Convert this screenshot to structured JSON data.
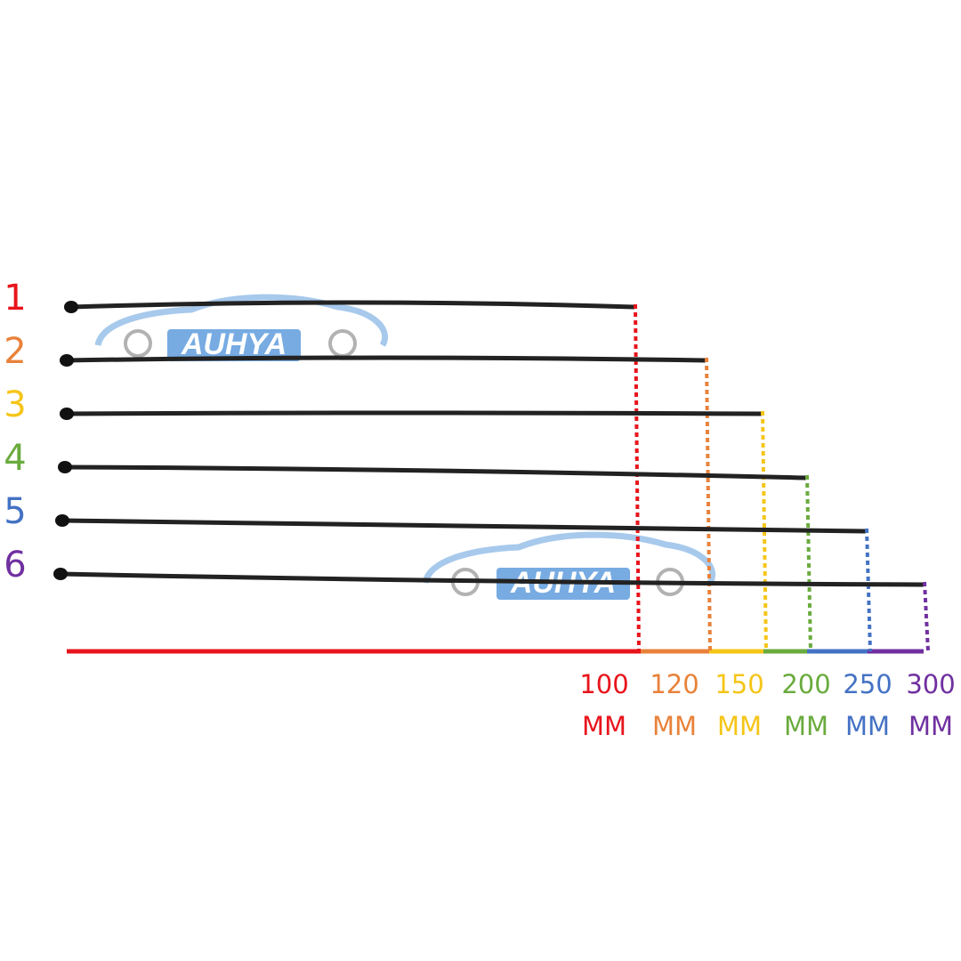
{
  "watermark": "AUHYA",
  "rows": [
    {
      "label": "1",
      "color": "#e8141c"
    },
    {
      "label": "2",
      "color": "#e8823a"
    },
    {
      "label": "3",
      "color": "#f5c518"
    },
    {
      "label": "4",
      "color": "#6aab3e"
    },
    {
      "label": "5",
      "color": "#4472c4"
    },
    {
      "label": "6",
      "color": "#7030a0"
    }
  ],
  "sizes": [
    {
      "value": "100",
      "unit": "MM"
    },
    {
      "value": "120",
      "unit": "MM"
    },
    {
      "value": "150",
      "unit": "MM"
    },
    {
      "value": "200",
      "unit": "MM"
    },
    {
      "value": "250",
      "unit": "MM"
    },
    {
      "value": "300",
      "unit": "MM"
    }
  ]
}
